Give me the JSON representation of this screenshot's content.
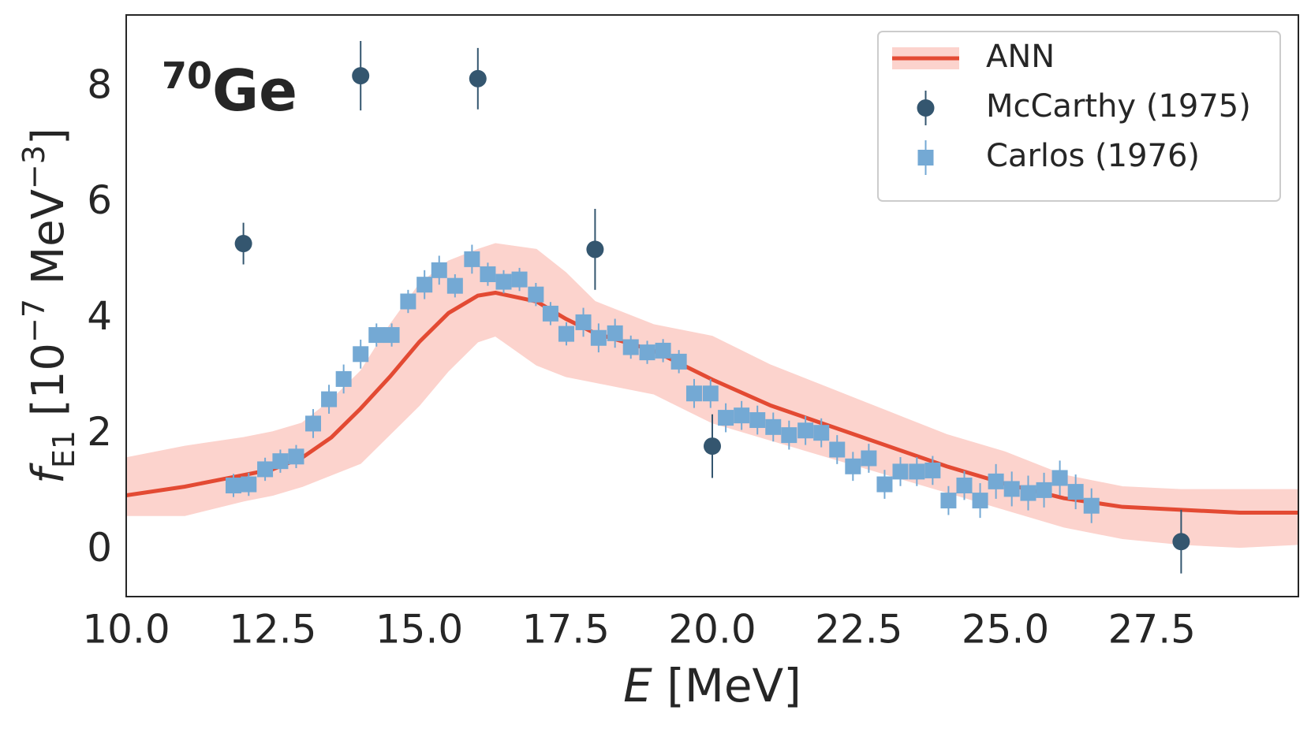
{
  "chart_data": {
    "type": "line",
    "annotation_parts": [
      "70",
      "Ge"
    ],
    "xlabel_parts": [
      "E",
      " [MeV]"
    ],
    "ylabel_parts": [
      "f",
      "E1",
      " [10",
      "−7",
      " MeV",
      "−3",
      "]"
    ],
    "xlim": [
      10,
      30
    ],
    "ylim": [
      -0.8,
      9.25
    ],
    "xticks": [
      {
        "value": 10,
        "label": "10.0"
      },
      12.5,
      {
        "value": 15,
        "label": "15.0"
      },
      17.5,
      {
        "value": 20,
        "label": "20.0"
      },
      22.5,
      {
        "value": 25,
        "label": "25.0"
      },
      27.5
    ],
    "yticks": [
      0,
      2,
      4,
      6,
      8
    ],
    "grid": false,
    "legend": "upper right",
    "series": [
      {
        "name": "ANN",
        "color": "#e34a33",
        "band_color": "#fcd3cd",
        "x": [
          10,
          11,
          12,
          12.5,
          13,
          13.5,
          14,
          14.5,
          15,
          15.5,
          16,
          16.3,
          17,
          17.5,
          18,
          19,
          20,
          21,
          22,
          23,
          24,
          25,
          26,
          27,
          28,
          29,
          30
        ],
        "values": [
          0.95,
          1.1,
          1.3,
          1.4,
          1.6,
          1.95,
          2.45,
          3.0,
          3.6,
          4.1,
          4.4,
          4.45,
          4.3,
          4.0,
          3.75,
          3.45,
          2.95,
          2.5,
          2.15,
          1.8,
          1.45,
          1.15,
          0.9,
          0.75,
          0.7,
          0.65,
          0.65
        ],
        "lower": [
          0.6,
          0.6,
          0.85,
          0.95,
          1.1,
          1.3,
          1.5,
          2.0,
          2.5,
          3.1,
          3.6,
          3.7,
          3.2,
          3.0,
          2.9,
          2.7,
          2.2,
          1.9,
          1.6,
          1.3,
          1.0,
          0.7,
          0.4,
          0.2,
          0.1,
          0.05,
          0.1
        ],
        "upper": [
          1.6,
          1.8,
          1.95,
          2.05,
          2.2,
          2.6,
          3.1,
          3.9,
          4.6,
          5.0,
          5.2,
          5.3,
          5.2,
          4.8,
          4.3,
          3.9,
          3.7,
          3.2,
          2.8,
          2.4,
          2.0,
          1.7,
          1.3,
          1.1,
          1.05,
          1.05,
          1.05
        ]
      },
      {
        "name": "McCarthy (1975)",
        "color": "#34566f",
        "marker": "circle",
        "x": [
          12,
          14,
          16,
          18,
          20,
          28
        ],
        "values": [
          5.3,
          8.2,
          8.15,
          5.2,
          1.8,
          0.15
        ],
        "errors": [
          0.36,
          0.6,
          0.53,
          0.7,
          0.55,
          0.55
        ]
      },
      {
        "name": "Carlos (1976)",
        "color": "#74a9d4",
        "marker": "square",
        "x": [
          11.83,
          12.09,
          12.37,
          12.63,
          12.9,
          13.19,
          13.46,
          13.71,
          14.0,
          14.27,
          14.53,
          14.81,
          15.09,
          15.34,
          15.61,
          15.9,
          16.17,
          16.44,
          16.71,
          16.99,
          17.24,
          17.51,
          17.8,
          18.06,
          18.34,
          18.61,
          18.89,
          19.16,
          19.43,
          19.69,
          19.97,
          20.23,
          20.5,
          20.77,
          21.04,
          21.31,
          21.59,
          21.86,
          22.13,
          22.4,
          22.67,
          22.94,
          23.21,
          23.49,
          23.76,
          24.03,
          24.3,
          24.57,
          24.84,
          25.11,
          25.39,
          25.66,
          25.93,
          26.2,
          26.47
        ],
        "values": [
          1.12,
          1.14,
          1.4,
          1.54,
          1.62,
          2.19,
          2.61,
          2.96,
          3.39,
          3.72,
          3.72,
          4.3,
          4.59,
          4.84,
          4.57,
          5.03,
          4.77,
          4.64,
          4.68,
          4.42,
          4.09,
          3.74,
          3.94,
          3.67,
          3.75,
          3.51,
          3.42,
          3.45,
          3.26,
          2.71,
          2.71,
          2.29,
          2.33,
          2.25,
          2.13,
          1.99,
          2.07,
          2.03,
          1.74,
          1.45,
          1.59,
          1.14,
          1.36,
          1.36,
          1.38,
          0.86,
          1.12,
          0.86,
          1.19,
          1.06,
          0.99,
          1.04,
          1.25,
          1.01,
          0.77
        ],
        "errors": [
          0.2,
          0.2,
          0.2,
          0.2,
          0.2,
          0.25,
          0.25,
          0.25,
          0.25,
          0.2,
          0.2,
          0.2,
          0.25,
          0.25,
          0.2,
          0.25,
          0.2,
          0.2,
          0.2,
          0.2,
          0.2,
          0.2,
          0.25,
          0.25,
          0.25,
          0.2,
          0.2,
          0.2,
          0.2,
          0.25,
          0.25,
          0.25,
          0.25,
          0.25,
          0.25,
          0.25,
          0.25,
          0.25,
          0.25,
          0.25,
          0.25,
          0.25,
          0.25,
          0.25,
          0.25,
          0.25,
          0.25,
          0.3,
          0.3,
          0.3,
          0.3,
          0.3,
          0.3,
          0.3,
          0.3
        ]
      }
    ]
  }
}
